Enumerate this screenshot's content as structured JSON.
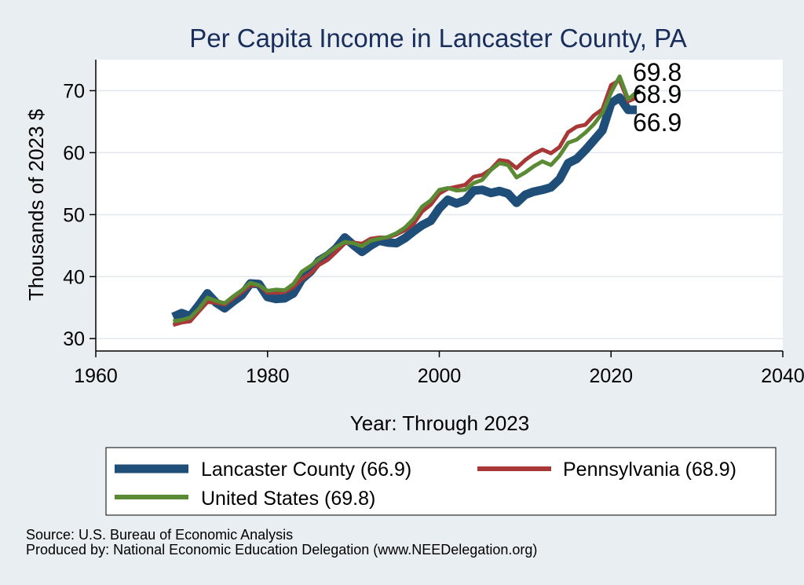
{
  "chart_data": {
    "type": "line",
    "title": "Per Capita Income in Lancaster County, PA",
    "xlabel": "Year: Through 2023",
    "ylabel": "Thousands of 2023 $",
    "xlim": [
      1960,
      2040
    ],
    "ylim": [
      28,
      75
    ],
    "xticks": [
      1960,
      1980,
      2000,
      2020,
      2040
    ],
    "yticks": [
      30,
      40,
      50,
      60,
      70
    ],
    "grid": true,
    "legend_position": "bottom",
    "x": [
      1969,
      1970,
      1971,
      1972,
      1973,
      1974,
      1975,
      1976,
      1977,
      1978,
      1979,
      1980,
      1981,
      1982,
      1983,
      1984,
      1985,
      1986,
      1987,
      1988,
      1989,
      1990,
      1991,
      1992,
      1993,
      1994,
      1995,
      1996,
      1997,
      1998,
      1999,
      2000,
      2001,
      2002,
      2003,
      2004,
      2005,
      2006,
      2007,
      2008,
      2009,
      2010,
      2011,
      2012,
      2013,
      2014,
      2015,
      2016,
      2017,
      2018,
      2019,
      2020,
      2021,
      2022,
      2023
    ],
    "series": [
      {
        "name": "Lancaster County (66.9)",
        "color": "#1f4e79",
        "values": [
          33.5,
          34.1,
          33.6,
          35.4,
          37.3,
          35.8,
          34.9,
          36.0,
          37.0,
          38.9,
          38.8,
          36.7,
          36.4,
          36.5,
          37.3,
          39.6,
          40.8,
          42.6,
          43.4,
          44.6,
          46.3,
          45.1,
          44.0,
          45.0,
          45.8,
          45.5,
          45.4,
          46.2,
          47.3,
          48.3,
          49.0,
          51.0,
          52.4,
          51.8,
          52.3,
          53.9,
          54.0,
          53.5,
          53.8,
          53.4,
          51.9,
          53.2,
          53.7,
          54.0,
          54.4,
          55.7,
          58.3,
          59.0,
          60.4,
          62.0,
          63.6,
          68.0,
          68.9,
          66.9,
          66.9
        ]
      },
      {
        "name": "Pennsylvania (68.9)",
        "color": "#a83838",
        "values": [
          32.2,
          32.6,
          32.8,
          34.4,
          35.9,
          35.8,
          35.5,
          36.5,
          37.5,
          38.6,
          38.6,
          37.4,
          37.4,
          37.5,
          38.3,
          39.6,
          40.5,
          41.9,
          42.7,
          44.0,
          45.4,
          45.5,
          45.3,
          46.1,
          46.3,
          46.3,
          46.8,
          47.5,
          48.5,
          50.5,
          51.6,
          53.4,
          54.2,
          54.5,
          54.8,
          56.1,
          56.4,
          57.3,
          58.8,
          58.6,
          57.5,
          58.8,
          59.8,
          60.5,
          59.9,
          60.9,
          63.3,
          64.2,
          64.5,
          66.0,
          67.0,
          70.9,
          71.7,
          68.3,
          68.9
        ]
      },
      {
        "name": "United States (69.8)",
        "color": "#5a8a33",
        "values": [
          32.8,
          33.0,
          33.4,
          34.8,
          36.6,
          36.1,
          35.7,
          36.8,
          37.8,
          39.0,
          38.6,
          37.7,
          37.9,
          37.8,
          38.8,
          40.8,
          41.7,
          42.8,
          43.8,
          44.8,
          45.6,
          45.4,
          44.9,
          45.8,
          46.1,
          46.4,
          47.0,
          47.9,
          49.3,
          51.3,
          52.3,
          54.0,
          54.3,
          53.9,
          54.0,
          55.1,
          55.6,
          57.2,
          58.3,
          58.0,
          56.0,
          56.8,
          57.8,
          58.6,
          58.0,
          59.5,
          61.6,
          62.1,
          63.2,
          64.6,
          66.4,
          69.7,
          72.3,
          68.6,
          69.8
        ]
      }
    ],
    "end_labels": [
      "69.8",
      "68.9",
      "66.9"
    ]
  },
  "footer": {
    "source": "Source: U.S. Bureau of Economic Analysis",
    "produced_by": "Produced by: National Economic Education Delegation (www.NEEDelegation.org)"
  }
}
